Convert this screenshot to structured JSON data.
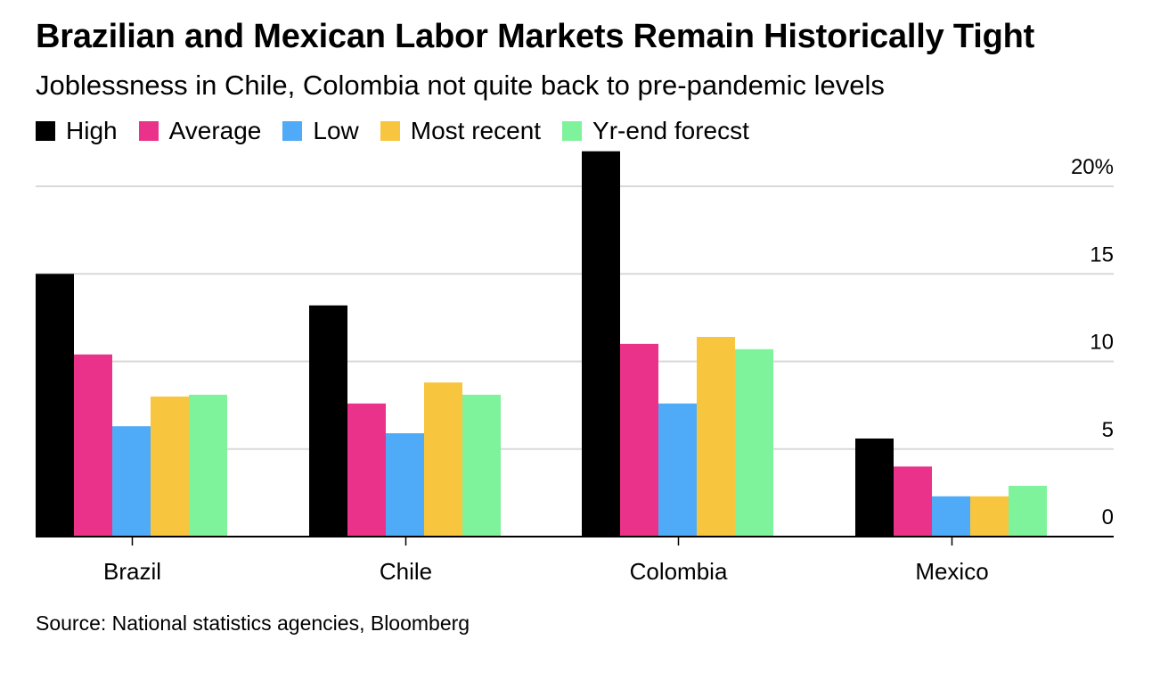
{
  "title": "Brazilian and Mexican Labor Markets Remain Historically Tight",
  "subtitle": "Joblessness in Chile, Colombia not quite back to pre-pandemic levels",
  "source": "Source: National statistics agencies, Bloomberg",
  "legend": [
    {
      "label": "High",
      "color": "#000000"
    },
    {
      "label": "Average",
      "color": "#ea328a"
    },
    {
      "label": "Low",
      "color": "#4fabf7"
    },
    {
      "label": "Most recent",
      "color": "#f7c53e"
    },
    {
      "label": "Yr-end forecst",
      "color": "#7ff39b"
    }
  ],
  "chart_data": {
    "type": "bar",
    "categories": [
      "Brazil",
      "Chile",
      "Colombia",
      "Mexico"
    ],
    "series": [
      {
        "name": "High",
        "color": "#000000",
        "values": [
          15.0,
          13.2,
          22.0,
          5.6
        ]
      },
      {
        "name": "Average",
        "color": "#ea328a",
        "values": [
          10.4,
          7.6,
          11.0,
          4.0
        ]
      },
      {
        "name": "Low",
        "color": "#4fabf7",
        "values": [
          6.3,
          5.9,
          7.6,
          2.3
        ]
      },
      {
        "name": "Most recent",
        "color": "#f7c53e",
        "values": [
          8.0,
          8.8,
          11.4,
          2.3
        ]
      },
      {
        "name": "Yr-end forecst",
        "color": "#7ff39b",
        "values": [
          8.1,
          8.1,
          10.7,
          2.9
        ]
      }
    ],
    "yticks": [
      0,
      5,
      10,
      15,
      20
    ],
    "ytick_labels": [
      "0",
      "5",
      "10",
      "15",
      "20%"
    ],
    "ylim": [
      0,
      20
    ],
    "axis_position": "right",
    "grid": true,
    "legend_position": "top-left"
  }
}
